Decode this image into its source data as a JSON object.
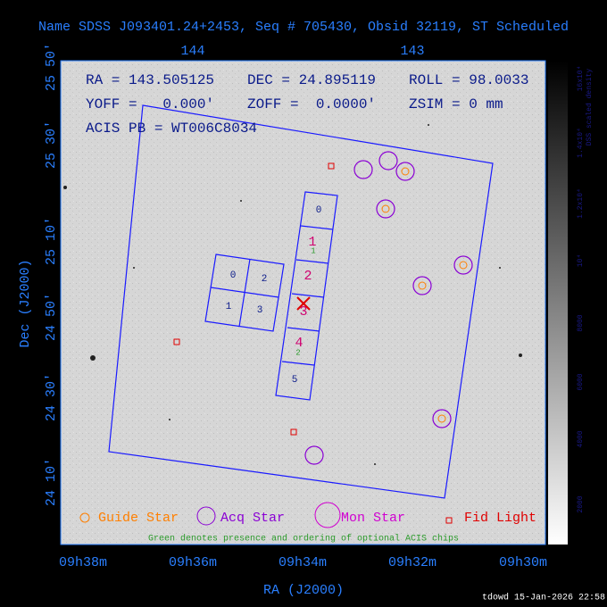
{
  "header": {
    "title": "Name SDSS J093401.24+2453, Seq # 705430, Obsid 32119, ST Scheduled"
  },
  "axes": {
    "top_labels": [
      "144",
      "143"
    ],
    "left_labels": [
      "25 50'",
      "25 30'",
      "25 10'",
      "24 50'",
      "24 30'",
      "24 10'"
    ],
    "bottom_labels": [
      "09h38m",
      "09h36m",
      "09h34m",
      "09h32m",
      "09h30m"
    ],
    "x_label": "RA (J2000)",
    "y_label": "Dec (J2000)"
  },
  "info": {
    "ra": "RA = 143.505125",
    "dec": "DEC = 24.895119",
    "roll": "ROLL = 98.0033",
    "yoff": "YOFF =   0.000'",
    "zoff": "ZOFF =  0.0000'",
    "zsim": "ZSIM = 0 mm",
    "acis": "ACIS PB = WT006C8034"
  },
  "chips": {
    "acis_i": [
      "0",
      "2",
      "1",
      "3"
    ],
    "acis_s": [
      "0",
      "1",
      "2",
      "3",
      "4",
      "5"
    ],
    "optional": [
      "1",
      "2"
    ]
  },
  "legend": {
    "guide": "Guide Star",
    "acq": "Acq Star",
    "mon": "Mon Star",
    "fid": "Fid Light",
    "note": "Green denotes presence and ordering of optional ACIS chips"
  },
  "colorbar": {
    "labels": [
      "16x10⁴",
      "1.4x10⁴",
      "1.2x10⁴",
      "10⁴",
      "8000",
      "6000",
      "4000",
      "2000"
    ],
    "title": "DSS scaled density"
  },
  "footer": {
    "stamp": "tdowd 15-Jan-2026 22:58"
  }
}
